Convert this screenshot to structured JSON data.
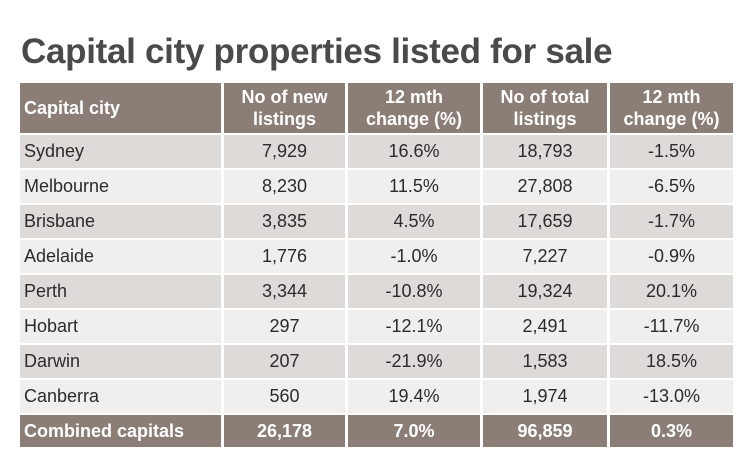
{
  "title": "Capital city properties listed for sale",
  "table": {
    "headers": [
      [
        "Capital city"
      ],
      [
        "No of new",
        "listings"
      ],
      [
        "12 mth",
        "change (%)"
      ],
      [
        "No of total",
        "listings"
      ],
      [
        "12 mth",
        "change (%)"
      ]
    ],
    "rows": [
      {
        "city": "Sydney",
        "new_listings": "7,929",
        "new_change": "16.6%",
        "total_listings": "18,793",
        "total_change": "-1.5%"
      },
      {
        "city": "Melbourne",
        "new_listings": "8,230",
        "new_change": "11.5%",
        "total_listings": "27,808",
        "total_change": "-6.5%"
      },
      {
        "city": "Brisbane",
        "new_listings": "3,835",
        "new_change": "4.5%",
        "total_listings": "17,659",
        "total_change": "-1.7%"
      },
      {
        "city": "Adelaide",
        "new_listings": "1,776",
        "new_change": "-1.0%",
        "total_listings": "7,227",
        "total_change": "-0.9%"
      },
      {
        "city": "Perth",
        "new_listings": "3,344",
        "new_change": "-10.8%",
        "total_listings": "19,324",
        "total_change": "20.1%"
      },
      {
        "city": "Hobart",
        "new_listings": "297",
        "new_change": "-12.1%",
        "total_listings": "2,491",
        "total_change": "-11.7%"
      },
      {
        "city": "Darwin",
        "new_listings": "207",
        "new_change": "-21.9%",
        "total_listings": "1,583",
        "total_change": "18.5%"
      },
      {
        "city": "Canberra",
        "new_listings": "560",
        "new_change": "19.4%",
        "total_listings": "1,974",
        "total_change": "-13.0%"
      }
    ],
    "total": {
      "city": "Combined capitals",
      "new_listings": "26,178",
      "new_change": "7.0%",
      "total_listings": "96,859",
      "total_change": "0.3%"
    }
  },
  "colors": {
    "header_bg": "#8b7e76",
    "row_shade": "#dedad8",
    "row_plain": "#f1efee",
    "title_text": "#4a4a4a"
  }
}
